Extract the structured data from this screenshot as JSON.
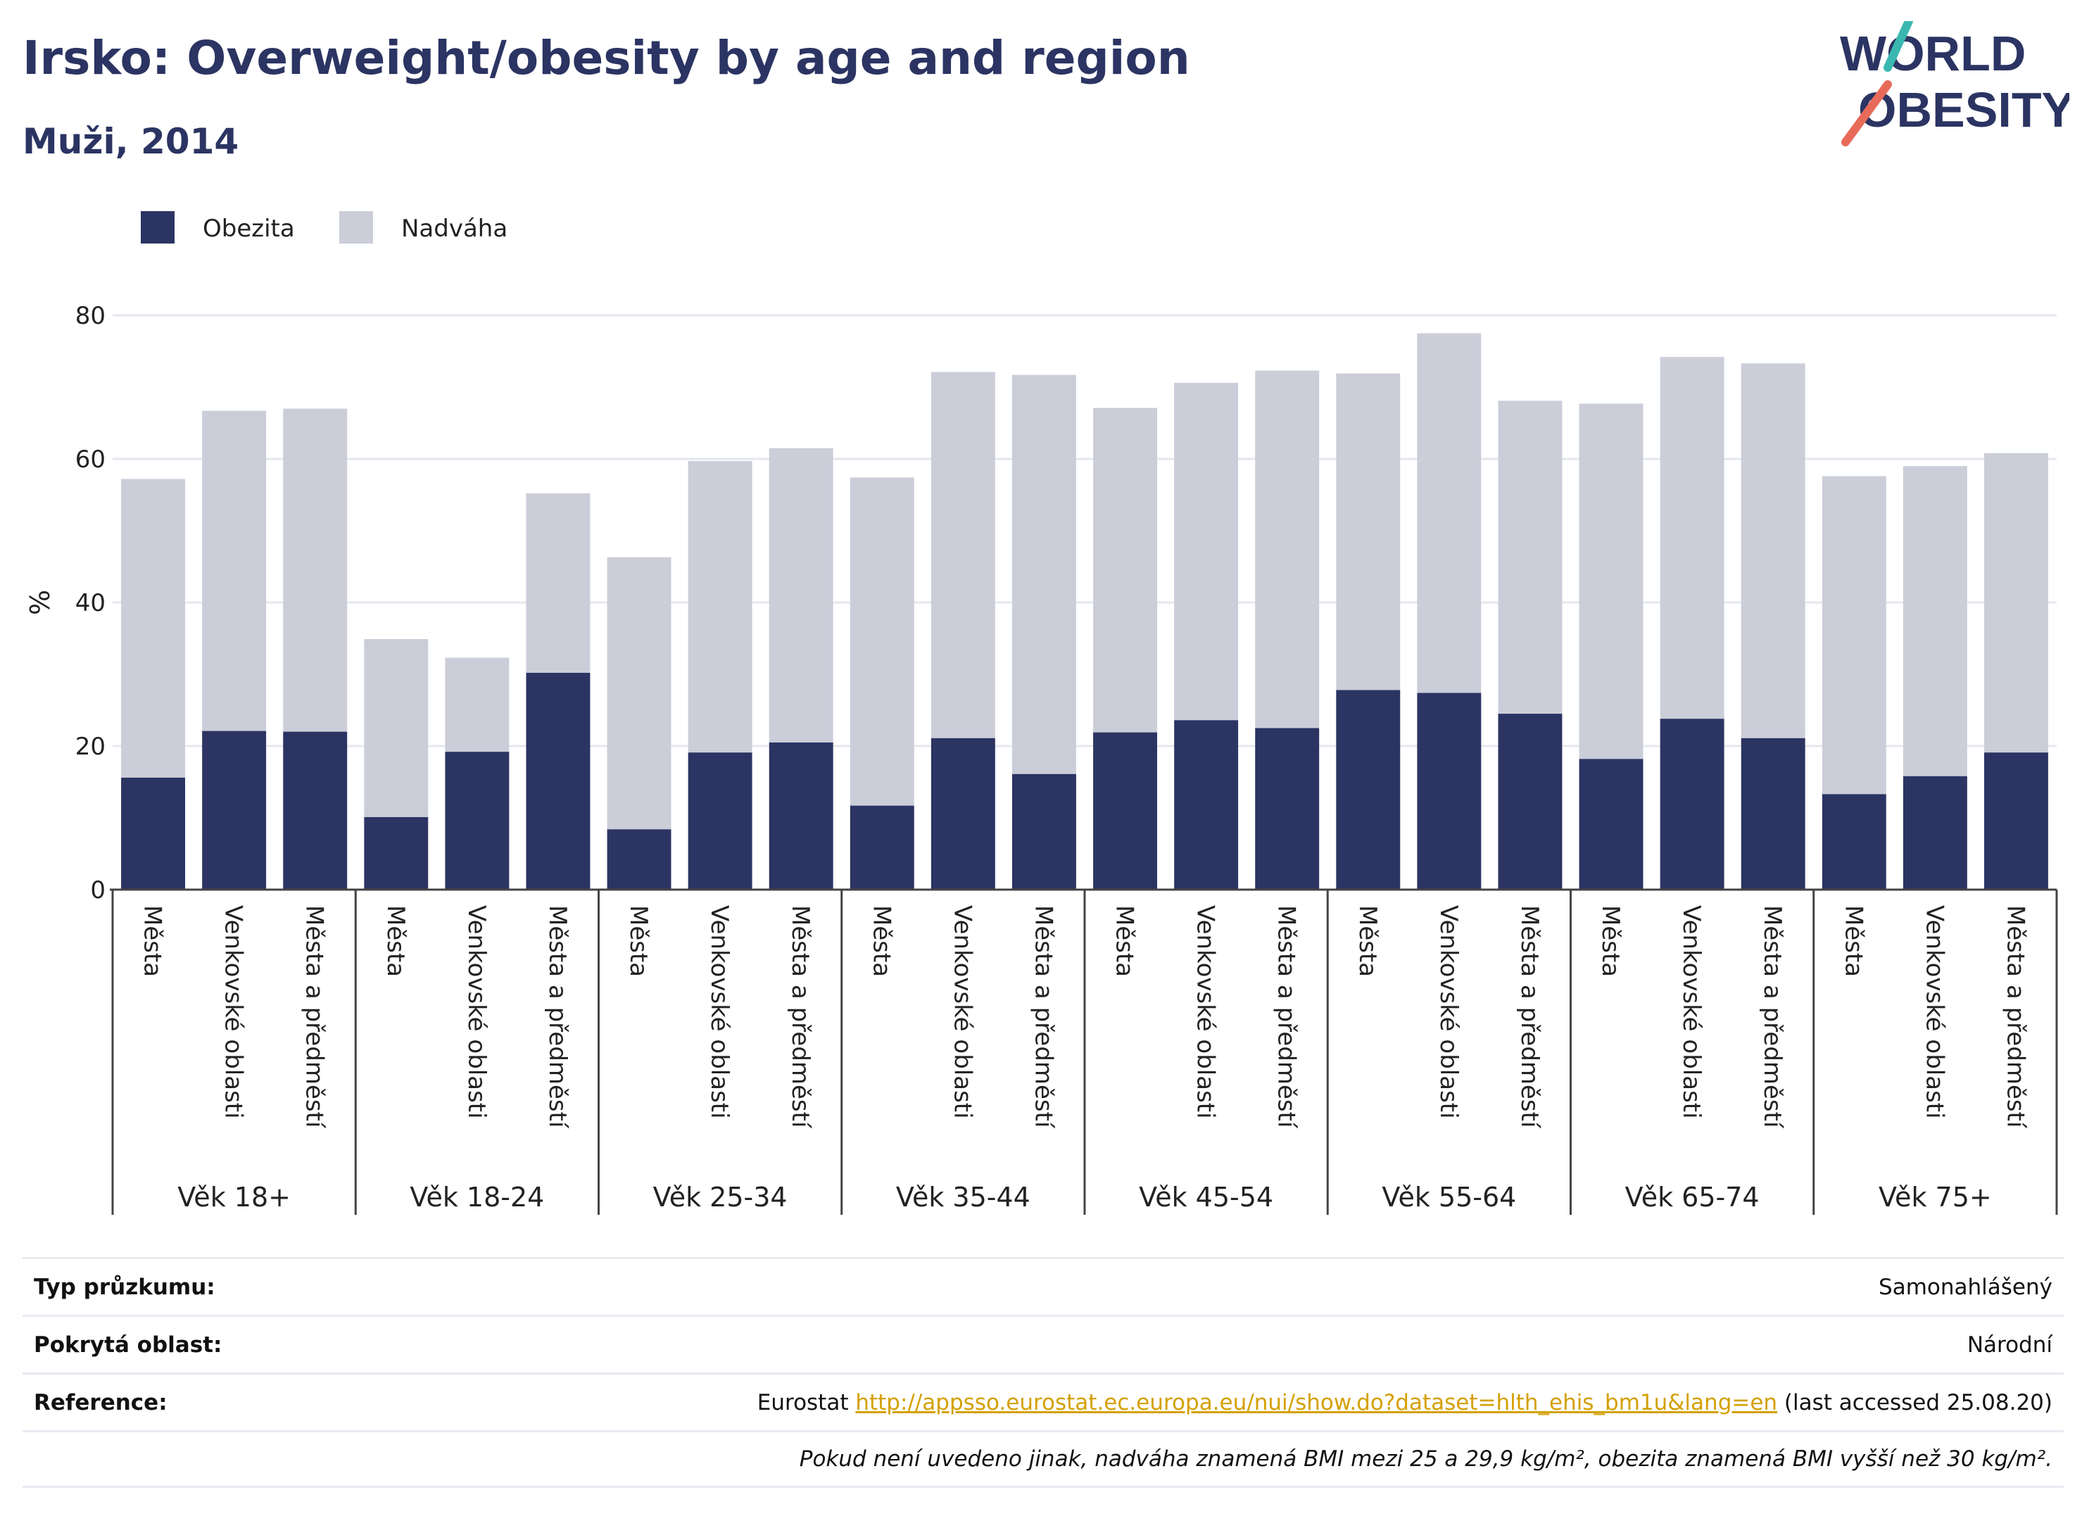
{
  "header": {
    "title": "Irsko: Overweight/obesity by age and region",
    "subtitle": "Muži, 2014"
  },
  "logo": {
    "line1": "WORLD",
    "line2": "OBESITY"
  },
  "chart_data": {
    "type": "bar",
    "stacked": true,
    "ylabel": "%",
    "ylim": [
      0,
      80
    ],
    "yticks": [
      0,
      20,
      40,
      60,
      80
    ],
    "grid": true,
    "legend": {
      "placement": "top-left"
    },
    "colors": {
      "obesity": "#2b3462",
      "overweight": "#cbcdd9"
    },
    "groups": [
      {
        "label": "Věk 18+",
        "categories": [
          "Města",
          "Venkovské oblasti",
          "Města a předměstí"
        ]
      },
      {
        "label": "Věk 18-24",
        "categories": [
          "Města",
          "Venkovské oblasti",
          "Města a předměstí"
        ]
      },
      {
        "label": "Věk 25-34",
        "categories": [
          "Města",
          "Venkovské oblasti",
          "Města a předměstí"
        ]
      },
      {
        "label": "Věk 35-44",
        "categories": [
          "Města",
          "Venkovské oblasti",
          "Města a předměstí"
        ]
      },
      {
        "label": "Věk 45-54",
        "categories": [
          "Města",
          "Venkovské oblasti",
          "Města a předměstí"
        ]
      },
      {
        "label": "Věk 55-64",
        "categories": [
          "Města",
          "Venkovské oblasti",
          "Města a předměstí"
        ]
      },
      {
        "label": "Věk 65-74",
        "categories": [
          "Města",
          "Venkovské oblasti",
          "Města a předměstí"
        ]
      },
      {
        "label": "Věk 75+",
        "categories": [
          "Města",
          "Venkovské oblasti",
          "Města a předměstí"
        ]
      }
    ],
    "series": [
      {
        "name": "Obezita",
        "values": [
          15.6,
          22.1,
          22.0,
          10.1,
          19.2,
          30.2,
          8.4,
          19.1,
          20.5,
          11.7,
          21.1,
          16.1,
          21.9,
          23.6,
          22.5,
          27.8,
          27.4,
          24.5,
          18.2,
          23.8,
          21.1,
          13.3,
          15.8,
          19.1
        ]
      },
      {
        "name": "Nadváha",
        "values": [
          41.6,
          44.6,
          45.0,
          24.8,
          13.1,
          25.0,
          37.9,
          40.6,
          41.0,
          45.7,
          51.0,
          55.6,
          45.2,
          47.0,
          49.8,
          44.1,
          50.1,
          43.6,
          49.5,
          50.4,
          52.2,
          44.3,
          43.2,
          41.7
        ]
      }
    ]
  },
  "info": [
    {
      "label": "Typ průzkumu:",
      "value": "Samonahlášený"
    },
    {
      "label": "Pokrytá oblast:",
      "value": "Národní"
    },
    {
      "label": "Reference:",
      "value_prefix": "Eurostat ",
      "link": "http://appsso.eurostat.ec.europa.eu/nui/show.do?dataset=hlth_ehis_bm1u&lang=en",
      "value_suffix": " (last accessed 25.08.20)"
    }
  ],
  "note": "Pokud není uvedeno jinak, nadváha znamená BMI mezi 25 a 29,9 kg/m², obezita znamená BMI vyšší než 30 kg/m²."
}
